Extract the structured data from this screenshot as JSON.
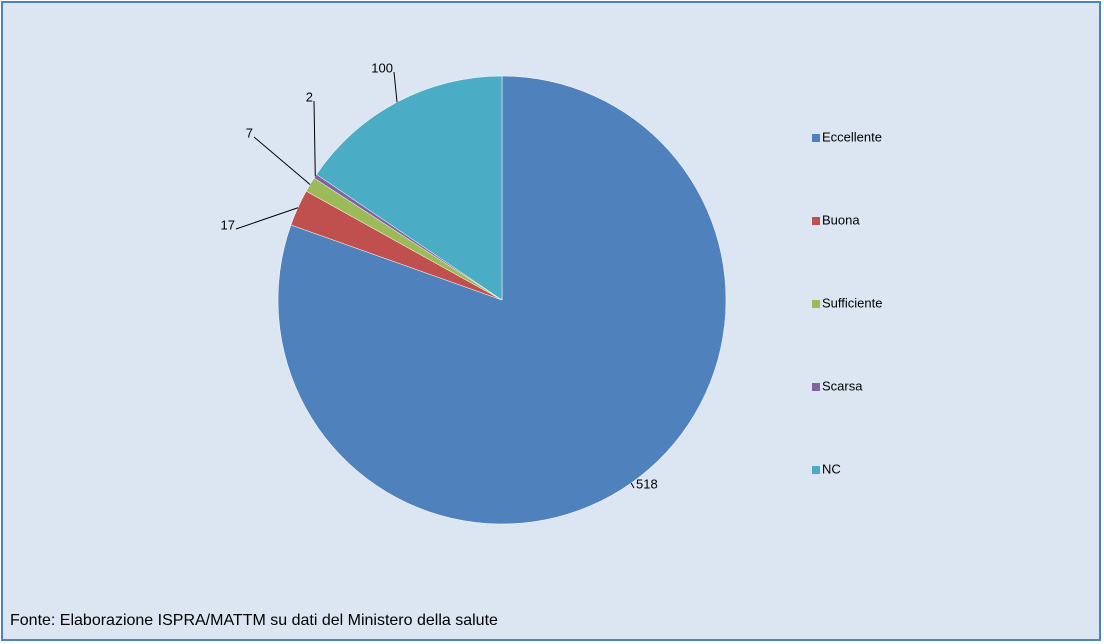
{
  "chart_data": {
    "type": "pie",
    "categories": [
      "Eccellente",
      "Buona",
      "Sufficiente",
      "Scarsa",
      "NC"
    ],
    "values": [
      518,
      17,
      7,
      2,
      100
    ],
    "colors": [
      "#4f81bd",
      "#c0504d",
      "#9bbb59",
      "#8064a2",
      "#4bacc6"
    ],
    "legend": "right",
    "source": "Fonte: Elaborazione ISPRA/MATTM su dati del Ministero della salute"
  }
}
